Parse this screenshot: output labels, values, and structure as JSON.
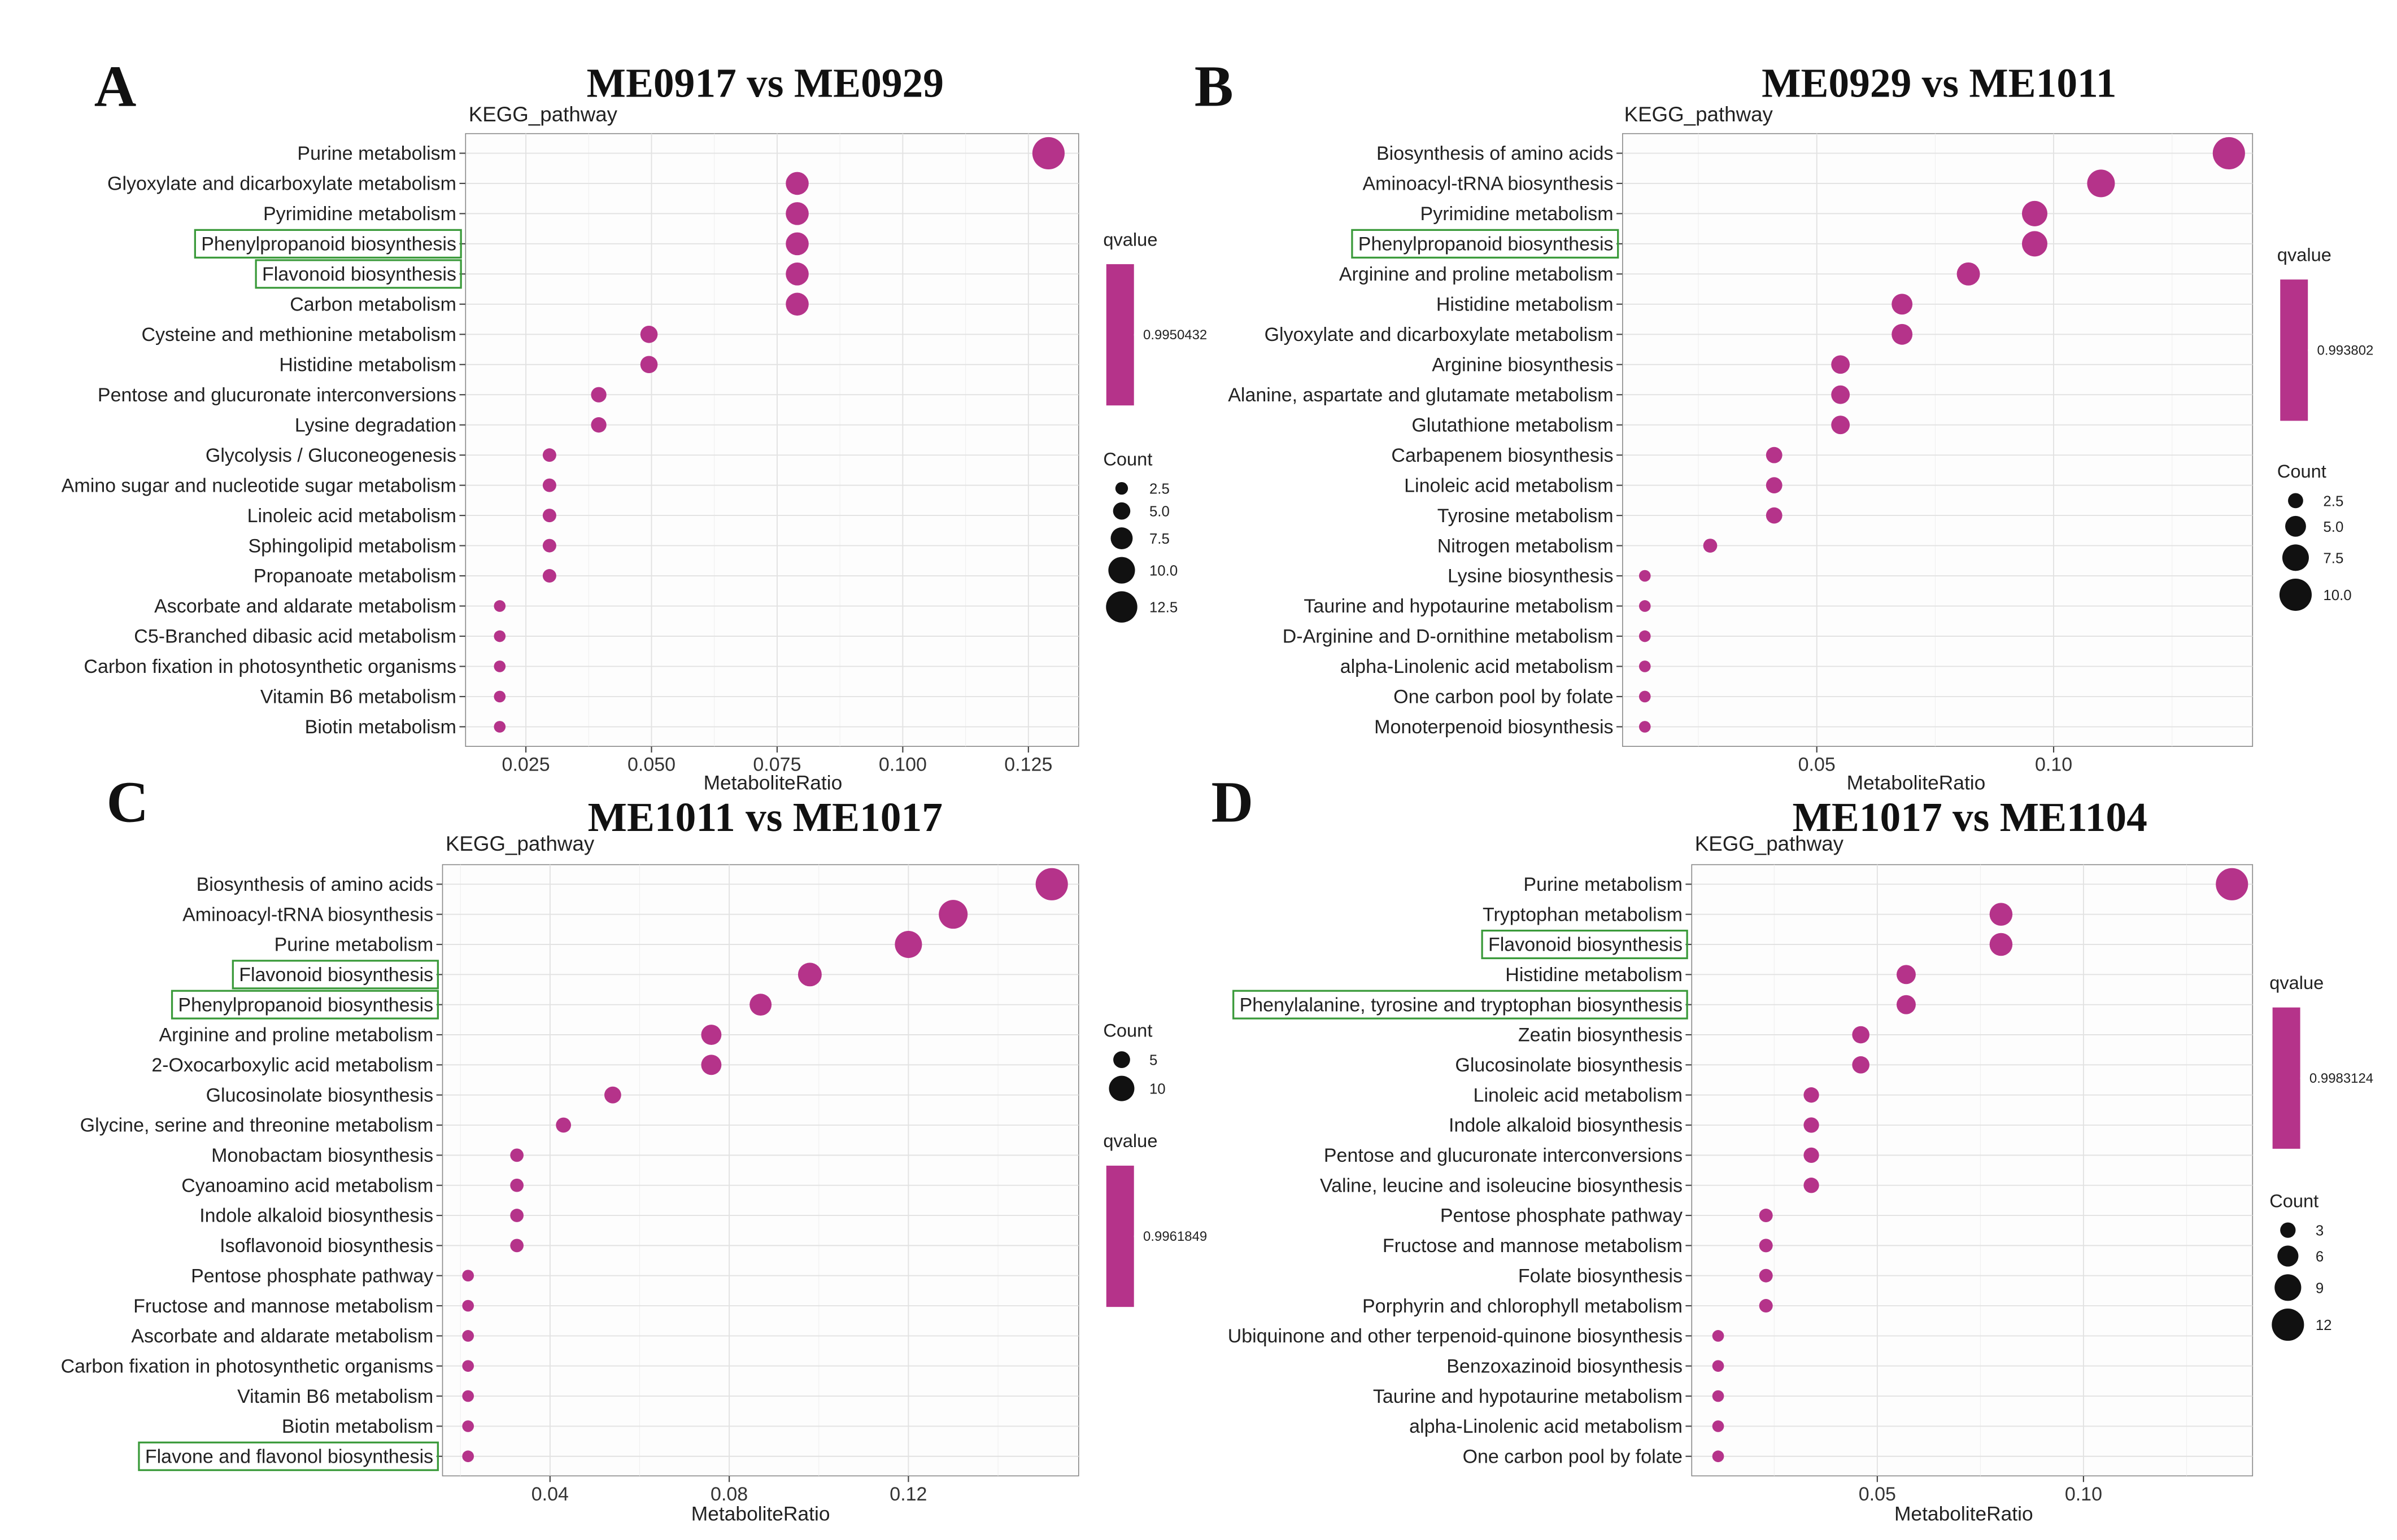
{
  "chart_data": [
    {
      "type": "scatter",
      "panel_label": "A",
      "title": "ME0917 vs ME0929",
      "subtitle": "KEGG_pathway",
      "xlabel": "MetaboliteRatio",
      "ylabel": "",
      "xlim": [
        0.013,
        0.135
      ],
      "xticks": [
        0.025,
        0.05,
        0.075,
        0.1,
        0.125
      ],
      "xtick_labels": [
        "0.025",
        "0.050",
        "0.075",
        "0.100",
        "0.125"
      ],
      "grid": true,
      "color": "#b5338a",
      "highlight_color": "#3a9a3a",
      "categories": [
        "Purine metabolism",
        "Glyoxylate and dicarboxylate metabolism",
        "Pyrimidine metabolism",
        "Phenylpropanoid biosynthesis",
        "Flavonoid biosynthesis",
        "Carbon metabolism",
        "Cysteine and methionine metabolism",
        "Histidine metabolism",
        "Pentose and glucuronate interconversions",
        "Lysine degradation",
        "Glycolysis / Gluconeogenesis",
        "Amino sugar and nucleotide sugar metabolism",
        "Linoleic acid metabolism",
        "Sphingolipid metabolism",
        "Propanoate metabolism",
        "Ascorbate and aldarate metabolism",
        "C5-Branched dibasic acid metabolism",
        "Carbon fixation in photosynthetic organisms",
        "Vitamin B6 metabolism",
        "Biotin metabolism"
      ],
      "x": [
        0.129,
        0.079,
        0.079,
        0.079,
        0.079,
        0.079,
        0.0495,
        0.0495,
        0.0395,
        0.0395,
        0.0297,
        0.0297,
        0.0297,
        0.0297,
        0.0297,
        0.0198,
        0.0198,
        0.0198,
        0.0198,
        0.0198
      ],
      "count": [
        13,
        8,
        8,
        8,
        8,
        8,
        5,
        5,
        4,
        4,
        3,
        3,
        3,
        3,
        3,
        2,
        2,
        2,
        2,
        2
      ],
      "highlighted": [
        "Phenylpropanoid biosynthesis",
        "Flavonoid biosynthesis"
      ],
      "legend_order": [
        "qvalue",
        "count"
      ],
      "qvalue_legend": {
        "title": "qvalue",
        "value": "0.9950432"
      },
      "count_legend": {
        "title": "Count",
        "labels": [
          "2.5",
          "5.0",
          "7.5",
          "10.0",
          "12.5"
        ],
        "values": [
          2.5,
          5,
          7.5,
          10,
          12.5
        ]
      },
      "size_domain": [
        2,
        13
      ]
    },
    {
      "type": "scatter",
      "panel_label": "B",
      "title": "ME0929 vs ME1011",
      "subtitle": "KEGG_pathway",
      "xlabel": "MetaboliteRatio",
      "ylabel": "",
      "xlim": [
        0.009,
        0.142
      ],
      "xticks": [
        0.05,
        0.1
      ],
      "xtick_labels": [
        "0.05",
        "0.10"
      ],
      "grid": true,
      "color": "#b5338a",
      "highlight_color": "#3a9a3a",
      "categories": [
        "Biosynthesis of amino acids",
        "Aminoacyl-tRNA biosynthesis",
        "Pyrimidine metabolism",
        "Phenylpropanoid biosynthesis",
        "Arginine and proline metabolism",
        "Histidine metabolism",
        "Glyoxylate and dicarboxylate metabolism",
        "Arginine biosynthesis",
        "Alanine, aspartate and glutamate metabolism",
        "Glutathione metabolism",
        "Carbapenem biosynthesis",
        "Linoleic acid metabolism",
        "Tyrosine metabolism",
        "Nitrogen metabolism",
        "Lysine biosynthesis",
        "Taurine and hypotaurine metabolism",
        "D-Arginine and D-ornithine metabolism",
        "alpha-Linolenic acid metabolism",
        "One carbon pool by folate",
        "Monoterpenoid biosynthesis"
      ],
      "x": [
        0.137,
        0.11,
        0.096,
        0.096,
        0.082,
        0.068,
        0.068,
        0.055,
        0.055,
        0.055,
        0.041,
        0.041,
        0.041,
        0.0275,
        0.0137,
        0.0137,
        0.0137,
        0.0137,
        0.0137,
        0.0137
      ],
      "count": [
        10,
        8,
        7,
        7,
        6,
        5,
        5,
        4,
        4,
        4,
        3,
        3,
        3,
        2,
        1,
        1,
        1,
        1,
        1,
        1
      ],
      "highlighted": [
        "Phenylpropanoid biosynthesis"
      ],
      "legend_order": [
        "qvalue",
        "count"
      ],
      "qvalue_legend": {
        "title": "qvalue",
        "value": "0.993802"
      },
      "count_legend": {
        "title": "Count",
        "labels": [
          "2.5",
          "5.0",
          "7.5",
          "10.0"
        ],
        "values": [
          2.5,
          5,
          7.5,
          10
        ]
      },
      "size_domain": [
        1,
        10
      ]
    },
    {
      "type": "scatter",
      "panel_label": "C",
      "title": "ME1011 vs ME1017",
      "subtitle": "KEGG_pathway",
      "xlabel": "MetaboliteRatio",
      "ylabel": "",
      "xlim": [
        0.016,
        0.158
      ],
      "xticks": [
        0.04,
        0.08,
        0.12
      ],
      "xtick_labels": [
        "0.04",
        "0.08",
        "0.12"
      ],
      "grid": true,
      "color": "#b5338a",
      "highlight_color": "#3a9a3a",
      "categories": [
        "Biosynthesis of amino acids",
        "Aminoacyl-tRNA biosynthesis",
        "Purine metabolism",
        "Flavonoid biosynthesis",
        "Phenylpropanoid biosynthesis",
        "Arginine and proline metabolism",
        "2-Oxocarboxylic acid metabolism",
        "Glucosinolate biosynthesis",
        "Glycine, serine and threonine metabolism",
        "Monobactam biosynthesis",
        "Cyanoamino acid metabolism",
        "Indole alkaloid biosynthesis",
        "Isoflavonoid biosynthesis",
        "Pentose phosphate pathway",
        "Fructose and mannose metabolism",
        "Ascorbate and aldarate metabolism",
        "Carbon fixation in photosynthetic organisms",
        "Vitamin B6 metabolism",
        "Biotin metabolism",
        "Flavone and flavonol biosynthesis"
      ],
      "x": [
        0.152,
        0.13,
        0.12,
        0.098,
        0.087,
        0.076,
        0.076,
        0.054,
        0.043,
        0.0326,
        0.0326,
        0.0326,
        0.0326,
        0.0217,
        0.0217,
        0.0217,
        0.0217,
        0.0217,
        0.0217,
        0.0217
      ],
      "count": [
        14,
        12,
        11,
        9,
        8,
        7,
        7,
        5,
        4,
        3,
        3,
        3,
        3,
        2,
        2,
        2,
        2,
        2,
        2,
        2
      ],
      "highlighted": [
        "Flavonoid biosynthesis",
        "Phenylpropanoid biosynthesis",
        "Flavone and flavonol biosynthesis"
      ],
      "legend_order": [
        "count",
        "qvalue"
      ],
      "qvalue_legend": {
        "title": "qvalue",
        "value": "0.9961849"
      },
      "count_legend": {
        "title": "Count",
        "labels": [
          "5",
          "10"
        ],
        "values": [
          5,
          10
        ]
      },
      "size_domain": [
        2,
        14
      ]
    },
    {
      "type": "scatter",
      "panel_label": "D",
      "title": "ME1017 vs ME1104",
      "subtitle": "KEGG_pathway",
      "xlabel": "MetaboliteRatio",
      "ylabel": "",
      "xlim": [
        0.005,
        0.141
      ],
      "xticks": [
        0.05,
        0.1
      ],
      "xtick_labels": [
        "0.05",
        "0.10"
      ],
      "grid": true,
      "color": "#b5338a",
      "highlight_color": "#3a9a3a",
      "categories": [
        "Purine metabolism",
        "Tryptophan metabolism",
        "Flavonoid biosynthesis",
        "Histidine metabolism",
        "Phenylalanine, tyrosine and tryptophan biosynthesis",
        "Zeatin biosynthesis",
        "Glucosinolate biosynthesis",
        "Linoleic acid metabolism",
        "Indole alkaloid biosynthesis",
        "Pentose and glucuronate interconversions",
        "Valine, leucine and isoleucine biosynthesis",
        "Pentose phosphate pathway",
        "Fructose and mannose metabolism",
        "Folate biosynthesis",
        "Porphyrin and chlorophyll metabolism",
        "Ubiquinone and other terpenoid-quinone biosynthesis",
        "Benzoxazinoid biosynthesis",
        "Taurine and hypotaurine metabolism",
        "alpha-Linolenic acid metabolism",
        "One carbon pool by folate"
      ],
      "x": [
        0.136,
        0.08,
        0.08,
        0.057,
        0.057,
        0.046,
        0.046,
        0.034,
        0.034,
        0.034,
        0.034,
        0.023,
        0.023,
        0.023,
        0.023,
        0.0114,
        0.0114,
        0.0114,
        0.0114,
        0.0114
      ],
      "count": [
        12,
        7,
        7,
        5,
        5,
        4,
        4,
        3,
        3,
        3,
        3,
        2,
        2,
        2,
        2,
        1,
        1,
        1,
        1,
        1
      ],
      "highlighted": [
        "Flavonoid biosynthesis",
        "Phenylalanine, tyrosine and tryptophan biosynthesis"
      ],
      "legend_order": [
        "qvalue",
        "count"
      ],
      "qvalue_legend": {
        "title": "qvalue",
        "value": "0.9983124"
      },
      "count_legend": {
        "title": "Count",
        "labels": [
          "3",
          "6",
          "9",
          "12"
        ],
        "values": [
          3,
          6,
          9,
          12
        ]
      },
      "size_domain": [
        1,
        12
      ]
    }
  ]
}
